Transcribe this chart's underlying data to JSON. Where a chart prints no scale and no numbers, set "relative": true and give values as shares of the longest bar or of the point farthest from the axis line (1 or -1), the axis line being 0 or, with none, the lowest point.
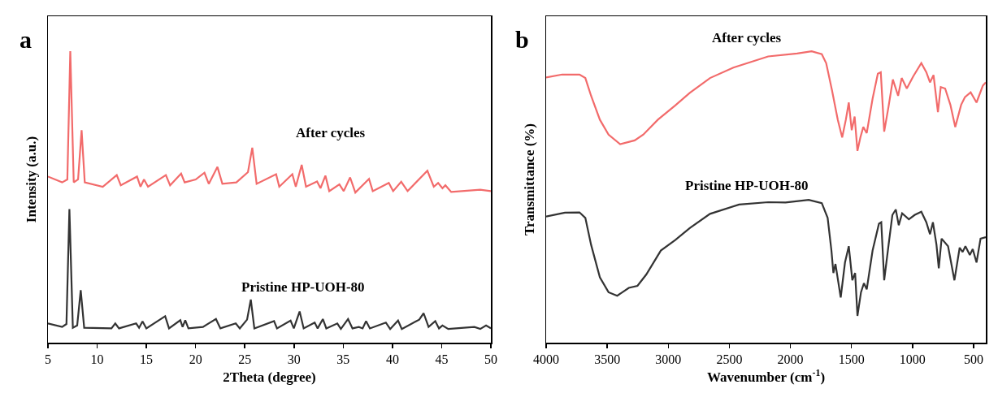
{
  "chart_data": [
    {
      "type": "line",
      "xlabel": "2Theta (degree)",
      "ylabel": "Intensity (a.u.)",
      "relative": true,
      "xlim": [
        5,
        50
      ],
      "xticks": [
        5,
        10,
        15,
        20,
        25,
        30,
        35,
        40,
        45,
        50
      ],
      "tick_labels": "x",
      "grid": false,
      "legend": false,
      "marker": "none",
      "line_style": "solid",
      "annotations": [
        "a"
      ],
      "series": [
        {
          "name": "After cycles",
          "color": "#f26b6b",
          "x": [
            5.0,
            6.44,
            6.97,
            7.27,
            7.62,
            8.06,
            8.42,
            8.74,
            10.57,
            11.99,
            12.4,
            14.05,
            14.4,
            14.76,
            15.17,
            16.98,
            17.41,
            18.53,
            18.89,
            20.01,
            20.9,
            21.34,
            22.22,
            22.72,
            24.14,
            25.32,
            25.76,
            26.2,
            28.18,
            28.5,
            29.83,
            30.18,
            30.78,
            31.22,
            32.34,
            32.69,
            33.19,
            33.58,
            34.61,
            35.05,
            35.7,
            36.23,
            37.62,
            38.0,
            39.63,
            40.07,
            40.89,
            41.54,
            43.55,
            44.2,
            44.64,
            45.08,
            45.38,
            45.97,
            48.92,
            50.0
          ],
          "values": [
            0.57,
            0.55,
            0.56,
            1.0,
            0.55,
            0.56,
            0.729,
            0.55,
            0.535,
            0.575,
            0.54,
            0.57,
            0.535,
            0.56,
            0.535,
            0.575,
            0.54,
            0.58,
            0.55,
            0.56,
            0.583,
            0.545,
            0.603,
            0.545,
            0.55,
            0.585,
            0.669,
            0.545,
            0.578,
            0.535,
            0.578,
            0.535,
            0.61,
            0.535,
            0.553,
            0.53,
            0.573,
            0.52,
            0.543,
            0.52,
            0.567,
            0.515,
            0.562,
            0.52,
            0.548,
            0.52,
            0.552,
            0.52,
            0.59,
            0.535,
            0.548,
            0.53,
            0.54,
            0.517,
            0.525,
            0.52
          ]
        },
        {
          "name": "Pristine HP-UOH-80",
          "color": "#333333",
          "x": [
            5.0,
            6.44,
            6.88,
            7.18,
            7.53,
            7.97,
            8.33,
            8.68,
            11.45,
            11.84,
            12.22,
            13.96,
            14.26,
            14.61,
            15.0,
            16.91,
            17.3,
            18.45,
            18.68,
            18.95,
            19.27,
            20.75,
            22.07,
            22.52,
            24.08,
            24.49,
            25.23,
            25.61,
            25.97,
            27.97,
            28.27,
            29.65,
            29.98,
            30.57,
            30.98,
            32.1,
            32.4,
            32.93,
            33.28,
            34.4,
            34.76,
            35.49,
            35.94,
            36.59,
            36.97,
            37.32,
            37.71,
            39.33,
            39.77,
            40.57,
            40.95,
            42.72,
            43.17,
            43.67,
            44.35,
            44.73,
            45.08,
            45.67,
            48.33,
            48.92,
            49.51,
            50.0
          ],
          "values": [
            0.066,
            0.054,
            0.064,
            0.458,
            0.051,
            0.059,
            0.18,
            0.051,
            0.049,
            0.066,
            0.049,
            0.066,
            0.051,
            0.073,
            0.049,
            0.091,
            0.049,
            0.077,
            0.054,
            0.077,
            0.049,
            0.054,
            0.081,
            0.049,
            0.066,
            0.049,
            0.079,
            0.148,
            0.049,
            0.074,
            0.049,
            0.076,
            0.049,
            0.107,
            0.049,
            0.069,
            0.049,
            0.081,
            0.049,
            0.066,
            0.047,
            0.081,
            0.049,
            0.054,
            0.049,
            0.074,
            0.049,
            0.069,
            0.047,
            0.076,
            0.047,
            0.079,
            0.101,
            0.054,
            0.074,
            0.049,
            0.059,
            0.047,
            0.054,
            0.047,
            0.059,
            0.049
          ]
        }
      ]
    },
    {
      "type": "line",
      "xlabel": "Wavenumber (cm$^{-1}$)",
      "ylabel": "Transmittance (%)",
      "relative": true,
      "xlim": [
        4000,
        400
      ],
      "xticks": [
        4000,
        3500,
        3000,
        2500,
        2000,
        1500,
        1000,
        500
      ],
      "tick_labels": "x",
      "grid": false,
      "legend": false,
      "marker": "none",
      "line_style": "solid",
      "annotations": [
        "b"
      ],
      "series": [
        {
          "name": "After cycles",
          "color": "#f26b6b",
          "x": [
            4000,
            3869,
            3727,
            3679,
            3632,
            3560,
            3489,
            3394,
            3275,
            3204,
            3085,
            2943,
            2824,
            2658,
            2467,
            2182,
            1945,
            1826,
            1743,
            1707,
            1660,
            1612,
            1576,
            1546,
            1522,
            1498,
            1474,
            1451,
            1427,
            1403,
            1375,
            1327,
            1284,
            1260,
            1232,
            1196,
            1161,
            1118,
            1089,
            1047,
            995,
            928,
            887,
            857,
            828,
            792,
            769,
            733,
            690,
            650,
            602,
            571,
            524,
            476,
            424,
            400
          ],
          "values": [
            0.91,
            0.92,
            0.92,
            0.908,
            0.847,
            0.765,
            0.714,
            0.681,
            0.694,
            0.714,
            0.765,
            0.814,
            0.857,
            0.908,
            0.944,
            0.982,
            0.992,
            1.0,
            0.99,
            0.959,
            0.867,
            0.765,
            0.704,
            0.765,
            0.824,
            0.729,
            0.776,
            0.658,
            0.704,
            0.74,
            0.719,
            0.837,
            0.923,
            0.928,
            0.724,
            0.811,
            0.903,
            0.847,
            0.908,
            0.872,
            0.913,
            0.959,
            0.928,
            0.893,
            0.918,
            0.791,
            0.877,
            0.872,
            0.816,
            0.74,
            0.816,
            0.842,
            0.859,
            0.824,
            0.882,
            0.893
          ]
        },
        {
          "name": "Pristine HP-UOH-80",
          "color": "#333333",
          "x": [
            4000,
            3846,
            3727,
            3679,
            3632,
            3560,
            3489,
            3418,
            3323,
            3252,
            3180,
            3061,
            2943,
            2824,
            2658,
            2420,
            2182,
            2040,
            1850,
            1743,
            1695,
            1664,
            1648,
            1631,
            1588,
            1553,
            1522,
            1493,
            1470,
            1451,
            1422,
            1398,
            1375,
            1327,
            1275,
            1256,
            1232,
            1196,
            1165,
            1137,
            1113,
            1085,
            1030,
            983,
            928,
            887,
            857,
            833,
            804,
            785,
            762,
            709,
            657,
            614,
            590,
            567,
            531,
            507,
            476,
            443,
            400
          ],
          "values": [
            0.433,
            0.446,
            0.447,
            0.428,
            0.336,
            0.224,
            0.173,
            0.161,
            0.188,
            0.195,
            0.234,
            0.316,
            0.352,
            0.393,
            0.442,
            0.474,
            0.482,
            0.481,
            0.49,
            0.479,
            0.428,
            0.316,
            0.239,
            0.27,
            0.155,
            0.275,
            0.331,
            0.214,
            0.239,
            0.092,
            0.173,
            0.204,
            0.183,
            0.316,
            0.408,
            0.413,
            0.214,
            0.336,
            0.438,
            0.457,
            0.403,
            0.444,
            0.423,
            0.438,
            0.449,
            0.413,
            0.372,
            0.413,
            0.336,
            0.255,
            0.357,
            0.331,
            0.214,
            0.326,
            0.311,
            0.331,
            0.301,
            0.321,
            0.275,
            0.357,
            0.362
          ]
        }
      ]
    }
  ]
}
